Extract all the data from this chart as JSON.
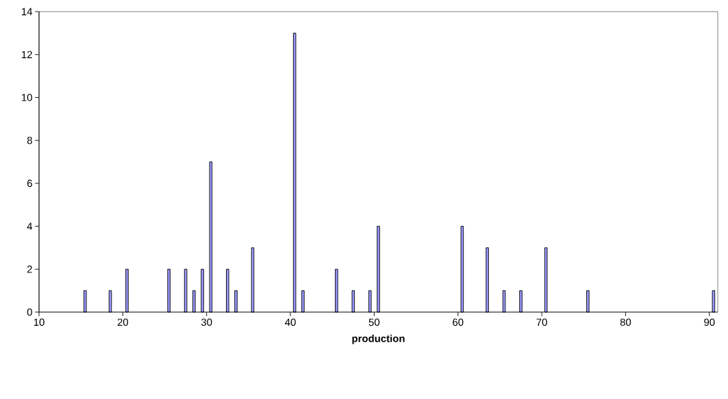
{
  "chart_data": {
    "type": "bar",
    "xlabel": "production",
    "x": [
      15.5,
      18.5,
      20.5,
      25.5,
      27.5,
      28.5,
      29.5,
      30.5,
      32.5,
      33.5,
      35.5,
      40.5,
      41.5,
      45.5,
      47.5,
      49.5,
      50.5,
      60.5,
      63.5,
      65.5,
      67.5,
      70.5,
      75.5,
      90.5
    ],
    "values": [
      1,
      1,
      2,
      2,
      2,
      1,
      2,
      7,
      2,
      1,
      3,
      13,
      1,
      2,
      1,
      1,
      4,
      4,
      3,
      1,
      1,
      3,
      1,
      1
    ],
    "color": "#9999ff",
    "xlim": [
      10,
      91
    ],
    "ylim": [
      0,
      14
    ],
    "xticks": [
      10,
      20,
      30,
      40,
      50,
      60,
      70,
      80,
      90
    ],
    "yticks": [
      0,
      2,
      4,
      6,
      8,
      10,
      12,
      14
    ]
  }
}
